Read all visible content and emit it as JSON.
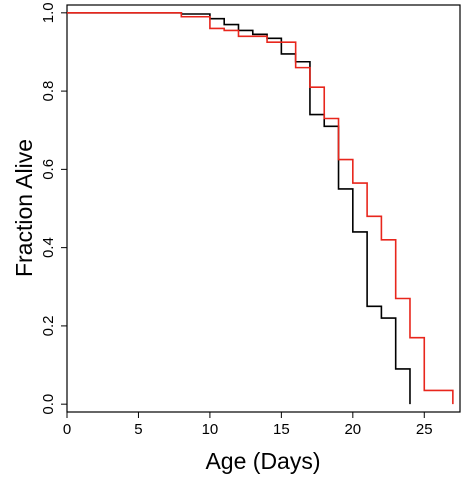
{
  "chart_data": {
    "type": "line",
    "step": true,
    "xlabel": "Age (Days)",
    "ylabel": "Fraction Alive",
    "xlim": [
      0,
      27.5
    ],
    "ylim": [
      -0.02,
      1.02
    ],
    "xticks": [
      0,
      5,
      10,
      15,
      20,
      25
    ],
    "yticks": [
      0.0,
      0.2,
      0.4,
      0.6,
      0.8,
      1.0
    ],
    "xtick_labels": [
      "0",
      "5",
      "10",
      "15",
      "20",
      "25"
    ],
    "ytick_labels": [
      "0.0",
      "0.2",
      "0.4",
      "0.6",
      "0.8",
      "1.0"
    ],
    "grid": false,
    "series": [
      {
        "color": "#000000",
        "x": [
          0,
          8,
          10,
          11,
          12,
          13,
          14,
          15,
          16,
          17,
          18,
          19,
          20,
          21,
          22,
          23,
          24
        ],
        "y": [
          1.0,
          0.997,
          0.985,
          0.97,
          0.955,
          0.945,
          0.935,
          0.895,
          0.875,
          0.74,
          0.71,
          0.55,
          0.44,
          0.25,
          0.22,
          0.09,
          0.05
        ]
      },
      {
        "color": "#e8261c",
        "x": [
          0,
          8,
          10,
          11,
          12,
          14,
          16,
          17,
          18,
          19,
          20,
          21,
          22,
          23,
          24,
          25,
          27
        ],
        "y": [
          1.0,
          0.99,
          0.96,
          0.955,
          0.94,
          0.925,
          0.86,
          0.81,
          0.73,
          0.625,
          0.565,
          0.48,
          0.42,
          0.27,
          0.17,
          0.035,
          0.0
        ]
      }
    ]
  }
}
